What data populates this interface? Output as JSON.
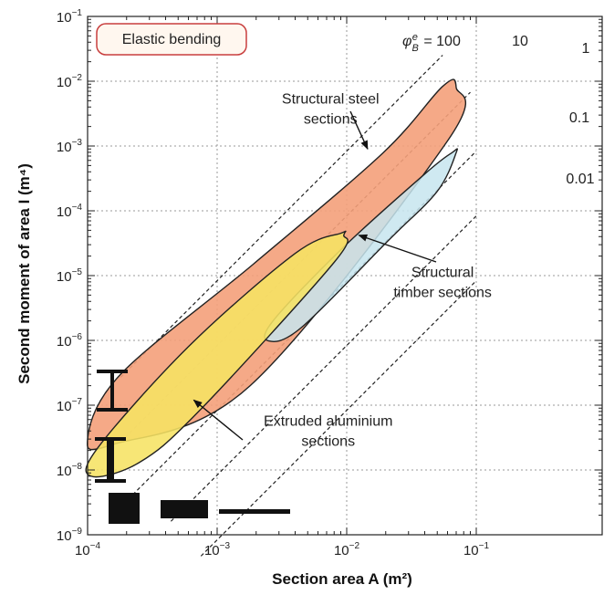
{
  "chart_data": {
    "type": "scatter",
    "title": "",
    "badge": "Elastic bending",
    "xlabel": "Section area A (m²)",
    "ylabel": "Second moment of area I (m⁴)",
    "x_scale": "log",
    "y_scale": "log",
    "xlim": [
      0.0001,
      0.15
    ],
    "ylim": [
      1e-09,
      0.1
    ],
    "grid": true,
    "x_ticks": [
      {
        "value": 0.0001,
        "base": "10",
        "exp": "−4"
      },
      {
        "value": 0.001,
        "base": "10",
        "exp": "−3"
      },
      {
        "value": 0.01,
        "base": "10",
        "exp": "−2"
      },
      {
        "value": 0.1,
        "base": "10",
        "exp": "−1"
      }
    ],
    "y_ticks": [
      {
        "value": 1e-09,
        "base": "10",
        "exp": "−9"
      },
      {
        "value": 1e-08,
        "base": "10",
        "exp": "−8"
      },
      {
        "value": 1e-07,
        "base": "10",
        "exp": "−7"
      },
      {
        "value": 1e-06,
        "base": "10",
        "exp": "−6"
      },
      {
        "value": 1e-05,
        "base": "10",
        "exp": "−5"
      },
      {
        "value": 0.0001,
        "base": "10",
        "exp": "−4"
      },
      {
        "value": 0.001,
        "base": "10",
        "exp": "−3"
      },
      {
        "value": 0.01,
        "base": "10",
        "exp": "−2"
      },
      {
        "value": 0.1,
        "base": "10",
        "exp": "−1"
      }
    ],
    "guidelines": [
      {
        "phi": 100,
        "label": "φBe = 100",
        "x_start": 0.00018,
        "x_end": 0.055
      },
      {
        "phi": 10,
        "label": "10",
        "x_start": 0.00018,
        "x_end": 0.09
      },
      {
        "phi": 1,
        "label": "1",
        "x_start": 0.00019,
        "x_end": 0.1
      },
      {
        "phi": 0.1,
        "label": "0.1",
        "x_start": 0.00044,
        "x_end": 0.1
      },
      {
        "phi": 0.01,
        "label": "0.01",
        "x_start": 0.00075,
        "x_end": 0.1
      }
    ],
    "regions": [
      {
        "name": "Structural steel sections",
        "color": "#f4a07a",
        "opacity": 0.9,
        "points": [
          [
            0.07,
            0.008
          ],
          [
            0.06,
            0.0012
          ],
          [
            0.0018,
            2e-07
          ],
          [
            0.00016,
            2.5e-08
          ],
          [
            0.0001,
            3e-08
          ],
          [
            0.00018,
            3e-07
          ],
          [
            0.0019,
            1.5e-05
          ],
          [
            0.019,
            0.00078
          ],
          [
            0.055,
            0.0083
          ]
        ]
      },
      {
        "name": "Structural timber sections",
        "color": "#c7e5ef",
        "opacity": 0.85,
        "points": [
          [
            0.07,
            0.00079
          ],
          [
            0.05,
            0.0002
          ],
          [
            0.021,
            3.5e-05
          ],
          [
            0.0045,
            1.6e-06
          ],
          [
            0.0025,
            9.8e-07
          ],
          [
            0.0027,
            2e-06
          ],
          [
            0.009,
            2.5e-05
          ],
          [
            0.04,
            0.00037
          ],
          [
            0.065,
            0.00079
          ]
        ]
      },
      {
        "name": "Extruded aluminium sections",
        "color": "#f6e363",
        "opacity": 0.88,
        "points": [
          [
            0.0095,
            4.2e-05
          ],
          [
            0.008,
            1.6e-05
          ],
          [
            0.00072,
            8e-08
          ],
          [
            0.00025,
            1.3e-08
          ],
          [
            0.000107,
            8e-09
          ],
          [
            0.00012,
            2.2e-08
          ],
          [
            0.0006,
            8e-07
          ],
          [
            0.004,
            2.2e-05
          ],
          [
            0.009,
            4.5e-05
          ]
        ]
      }
    ],
    "annotations": [
      {
        "lines": [
          "Structural steel",
          "sections"
        ],
        "x": 0.0075,
        "y": 0.0045,
        "arrow_to": [
          0.0145,
          0.0009
        ]
      },
      {
        "lines": [
          "Structural",
          "timber sections"
        ],
        "x": 0.055,
        "y": 9.5e-06,
        "arrow_to": [
          0.0124,
          4.2e-05
        ]
      },
      {
        "lines": [
          "Extruded aluminium",
          "sections"
        ],
        "x": 0.0072,
        "y": 4.8e-08,
        "arrow_to": [
          0.00066,
          1.2e-07
        ]
      }
    ],
    "section_icons": [
      "I-section large",
      "I-section small",
      "square section",
      "rectangle section",
      "plate section"
    ]
  }
}
